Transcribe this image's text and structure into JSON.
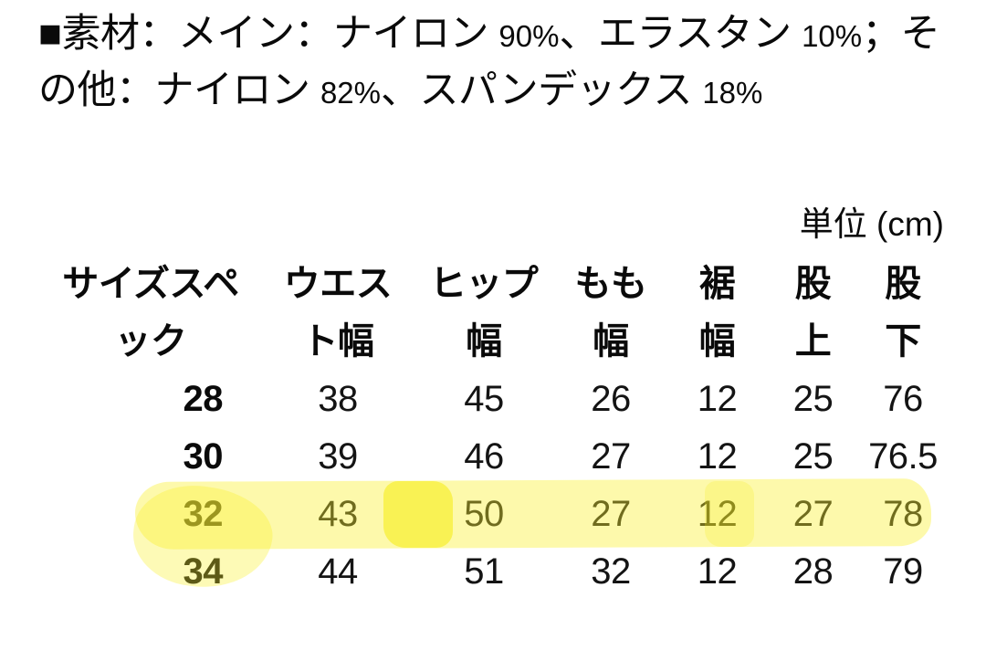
{
  "material": {
    "lines": [
      [
        "■素材：メイン：ナイロン ",
        "90%",
        "、エラスタン ",
        "10%",
        "；そ"
      ],
      [
        "の他：ナイロン ",
        "82%",
        "、スパンデックス ",
        "18%"
      ]
    ]
  },
  "unit_label": "単位 (cm)",
  "size_table": {
    "column_headers": [
      {
        "label": "サイズスペック",
        "lines": [
          "サイズスペ",
          "ック"
        ]
      },
      {
        "label": "ウエスト幅",
        "lines": [
          "ウエス",
          "ト幅"
        ]
      },
      {
        "label": "ヒップ幅",
        "lines": [
          "ヒップ",
          "幅"
        ]
      },
      {
        "label": "もも幅",
        "lines": [
          "もも",
          "幅"
        ]
      },
      {
        "label": "裾幅",
        "lines": [
          "裾",
          "幅"
        ]
      },
      {
        "label": "股上",
        "lines": [
          "股",
          "上"
        ]
      },
      {
        "label": "股下",
        "lines": [
          "股",
          "下"
        ]
      }
    ],
    "rows": [
      {
        "cells": [
          "28",
          "38",
          "45",
          "26",
          "12",
          "25",
          "76"
        ],
        "highlighted": false
      },
      {
        "cells": [
          "30",
          "39",
          "46",
          "27",
          "12",
          "25",
          "76.5"
        ],
        "highlighted": false
      },
      {
        "cells": [
          "32",
          "43",
          "50",
          "27",
          "12",
          "27",
          "78"
        ],
        "highlighted": true
      },
      {
        "cells": [
          "34",
          "44",
          "51",
          "32",
          "12",
          "28",
          "79"
        ],
        "highlighted": false
      }
    ]
  },
  "annotations": {
    "highlighter": {
      "type": "hand-drawn-highlight",
      "row_label": "32",
      "color_light": "#FCF9AB",
      "color_dark": "#F6EF4A"
    }
  },
  "colors": {
    "background": "#FFFFFF",
    "text": "#0A0A0A"
  }
}
